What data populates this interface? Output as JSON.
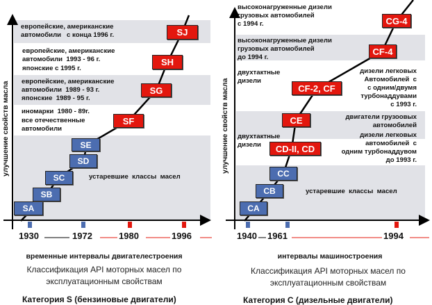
{
  "left": {
    "ylabel": "улучшение свойств масла",
    "bands": [
      "европейские, американские\nавтомобили   с конца 1996 г.",
      "европейские, американские\nавтомобили  1993 - 96 г.",
      "японские с 1995 г.",
      "европейские, американские\nавтомобили  1989 - 93 г.\nяпонские  1989 - 95 г.",
      "иномарки  1980 - 89г.",
      "все отечественные\nавтомобили"
    ],
    "obsolete": "устаревшие  классы  масел",
    "classes": [
      "SA",
      "SB",
      "SC",
      "SD",
      "SE",
      "SF",
      "SG",
      "SH",
      "SJ"
    ],
    "years": [
      "1930",
      "1972",
      "1980",
      "1996"
    ],
    "xlabel": "временные интервалы  двигателестроения",
    "classification": "Классификация API моторных масел по\nэксплуатационным свойствам",
    "category": "Категория S (бензиновые двигатели)"
  },
  "right": {
    "ylabel": "улучшение свойств масла",
    "bands": [
      "высоконагруженные дизели\nгрузовых автомобилей\nс 1994 г.",
      "высоконагруженные дизели\nгрузовых автомобилей\nдо 1994 г.",
      "двухтактные\nдизели",
      "дизели легковых\nАвтомобилей  с\nс одним/двумя\nтурбонаддувами\nс 1993 г.",
      "двигатели грузоовых\nавтомобилей",
      "двухтактные\nдизели",
      "дизели легковых\nавтомобилей  с\nодним турбонаддувом\nдо 1993 г."
    ],
    "obsolete": "устаревшие  классы  масел",
    "classes": [
      "CA",
      "CB",
      "CC",
      "CD-II, CD",
      "CE",
      "CF-2, CF",
      "CF-4",
      "CG-4"
    ],
    "years": [
      "1940",
      "1961",
      "1994"
    ],
    "xlabel": "интервалы  машиностроения",
    "classification": "Классификация API моторных масел по\nэксплуатационным свойствам",
    "category": "Категория C (дизельные двигатели)"
  },
  "colors": {
    "new": "#e3170e",
    "old": "#4c6db0",
    "band": "#e1e2e7"
  }
}
